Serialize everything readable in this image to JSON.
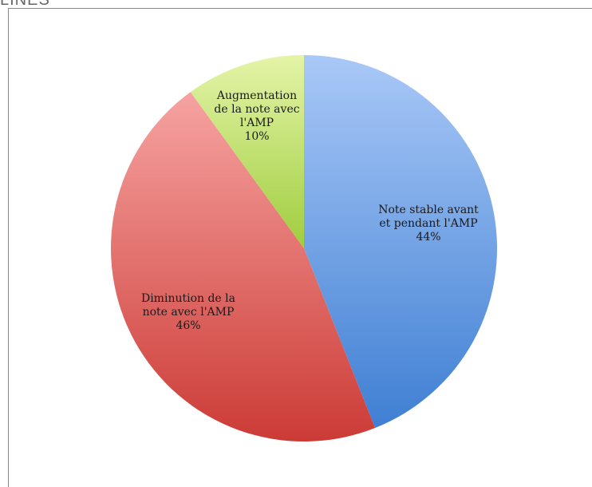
{
  "header": {
    "cut_text": "LINES"
  },
  "chart_data": {
    "type": "pie",
    "title": "",
    "slices": [
      {
        "label_lines": [
          "Note stable avant",
          "et pendant l'AMP"
        ],
        "percent_label": "44%",
        "value": 44,
        "color_light": "#a9c8f7",
        "color_dark": "#3f7fd3"
      },
      {
        "label_lines": [
          "Diminution de la",
          "note avec l'AMP"
        ],
        "percent_label": "46%",
        "value": 46,
        "color_light": "#f6a3a1",
        "color_dark": "#cc3b36"
      },
      {
        "label_lines": [
          "Augmentation",
          "de la note avec",
          "l'AMP"
        ],
        "percent_label": "10%",
        "value": 10,
        "color_light": "#e4f4a8",
        "color_dark": "#9fcd3e"
      }
    ],
    "start_angle_deg": 0,
    "direction": "clockwise",
    "legend": "none"
  }
}
